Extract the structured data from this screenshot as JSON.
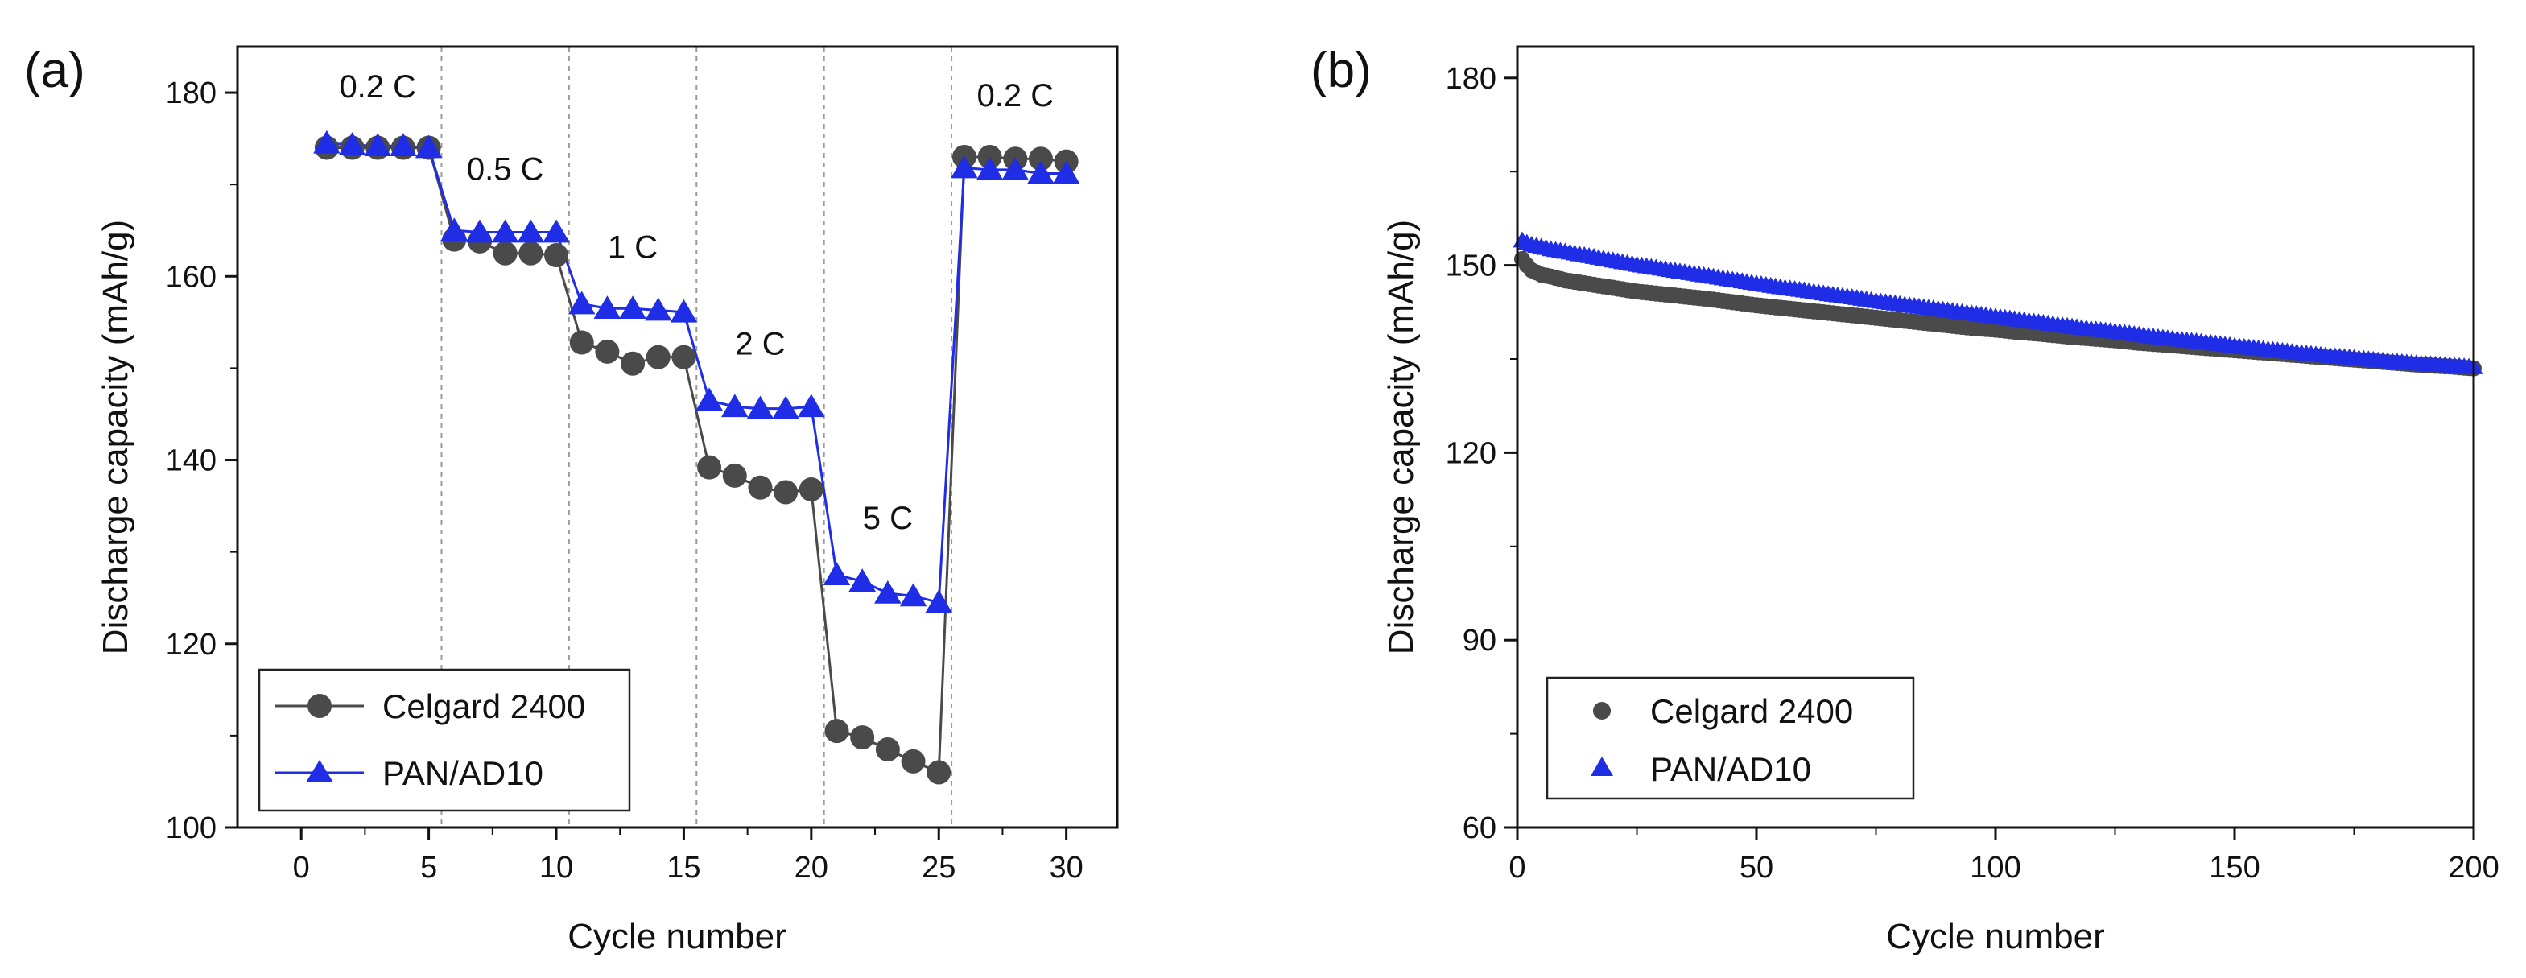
{
  "colors": {
    "celgard": "#4a4a4a",
    "pan": "#1f2de6",
    "axis": "#111111",
    "divider": "#9a9a9a"
  },
  "chart_data": [
    {
      "type": "line",
      "panel_label": "(a)",
      "xlabel": "Cycle number",
      "ylabel": "Discharge capacity (mAh/g)",
      "xlim": [
        -2.5,
        32
      ],
      "ylim": [
        100,
        185
      ],
      "xticks": [
        0,
        5,
        10,
        15,
        20,
        25,
        30
      ],
      "yticks": [
        100,
        120,
        140,
        160,
        180
      ],
      "rate_dividers": [
        5.5,
        10.5,
        15.5,
        20.5,
        25.5
      ],
      "rate_labels": [
        {
          "text": "0.2 C",
          "x": 3,
          "y": 179.5
        },
        {
          "text": "0.5 C",
          "x": 8,
          "y": 170.5
        },
        {
          "text": "1 C",
          "x": 13,
          "y": 162
        },
        {
          "text": "2 C",
          "x": 18,
          "y": 151.5
        },
        {
          "text": "5 C",
          "x": 23,
          "y": 132.5
        },
        {
          "text": "0.2 C",
          "x": 28,
          "y": 178.5
        }
      ],
      "legend_position": "bottom-left",
      "series": [
        {
          "name": "Celgard 2400",
          "marker": "circle",
          "x": [
            1,
            2,
            3,
            4,
            5,
            6,
            7,
            8,
            9,
            10,
            11,
            12,
            13,
            14,
            15,
            16,
            17,
            18,
            19,
            20,
            21,
            22,
            23,
            24,
            25,
            26,
            27,
            28,
            29,
            30
          ],
          "values": [
            174,
            174,
            174,
            174,
            174,
            164,
            163.8,
            162.5,
            162.5,
            162.3,
            152.8,
            151.8,
            150.5,
            151.2,
            151.2,
            139.2,
            138.3,
            137,
            136.5,
            136.8,
            110.5,
            109.8,
            108.5,
            107.2,
            106,
            173,
            173,
            172.8,
            172.8,
            172.5
          ]
        },
        {
          "name": "PAN/AD10",
          "marker": "triangle",
          "x": [
            1,
            2,
            3,
            4,
            5,
            6,
            7,
            8,
            9,
            10,
            11,
            12,
            13,
            14,
            15,
            16,
            17,
            18,
            19,
            20,
            21,
            22,
            23,
            24,
            25,
            26,
            27,
            28,
            29,
            30
          ],
          "values": [
            174.5,
            174.3,
            174.2,
            174.2,
            174,
            165,
            164.8,
            164.8,
            164.8,
            164.8,
            157,
            156.5,
            156.5,
            156.3,
            156.1,
            146.5,
            145.8,
            145.6,
            145.6,
            145.8,
            127.5,
            126.8,
            125.5,
            125.2,
            124.5,
            171.8,
            171.6,
            171.6,
            171.2,
            171.2
          ]
        }
      ]
    },
    {
      "type": "scatter",
      "panel_label": "(b)",
      "xlabel": "Cycle number",
      "ylabel": "Discharge capacity (mAh/g)",
      "xlim": [
        0,
        200
      ],
      "ylim": [
        60,
        185
      ],
      "xticks": [
        0,
        50,
        100,
        150,
        200
      ],
      "yticks": [
        60,
        90,
        120,
        150,
        180
      ],
      "legend_position": "bottom-left",
      "series": [
        {
          "name": "Celgard 2400",
          "marker": "circle",
          "x": [
            1,
            2,
            3,
            5,
            7,
            10,
            15,
            20,
            25,
            30,
            35,
            40,
            45,
            50,
            55,
            60,
            65,
            70,
            75,
            80,
            85,
            90,
            95,
            100,
            105,
            110,
            115,
            120,
            125,
            130,
            135,
            140,
            145,
            150,
            155,
            160,
            165,
            170,
            175,
            180,
            185,
            190,
            195,
            200
          ],
          "values": [
            151,
            150,
            149.2,
            148.5,
            148.2,
            147.6,
            147,
            146.4,
            145.8,
            145.4,
            145,
            144.6,
            144.1,
            143.6,
            143.2,
            142.8,
            142.4,
            142,
            141.6,
            141.2,
            140.8,
            140.4,
            140,
            139.7,
            139.3,
            139,
            138.6,
            138.3,
            138,
            137.6,
            137.3,
            137,
            136.7,
            136.4,
            136.1,
            135.8,
            135.5,
            135.2,
            134.9,
            134.6,
            134.3,
            134,
            133.8,
            133.5
          ]
        },
        {
          "name": "PAN/AD10",
          "marker": "triangle",
          "x": [
            1,
            2,
            3,
            5,
            7,
            10,
            15,
            20,
            25,
            30,
            35,
            40,
            45,
            50,
            55,
            60,
            65,
            70,
            75,
            80,
            85,
            90,
            95,
            100,
            105,
            110,
            115,
            120,
            125,
            130,
            135,
            140,
            145,
            150,
            155,
            160,
            165,
            170,
            175,
            180,
            185,
            190,
            195,
            200
          ],
          "values": [
            154,
            153.6,
            153.3,
            153,
            152.6,
            152.2,
            151.5,
            150.8,
            150.1,
            149.5,
            148.9,
            148.3,
            147.7,
            147.1,
            146.5,
            146,
            145.4,
            144.9,
            144.3,
            143.8,
            143.3,
            142.8,
            142.3,
            141.8,
            141.3,
            140.8,
            140.3,
            139.8,
            139.4,
            138.9,
            138.4,
            138,
            137.6,
            137.1,
            136.7,
            136.3,
            135.9,
            135.5,
            135.2,
            134.8,
            134.5,
            134.2,
            134,
            133.7
          ]
        }
      ]
    }
  ]
}
